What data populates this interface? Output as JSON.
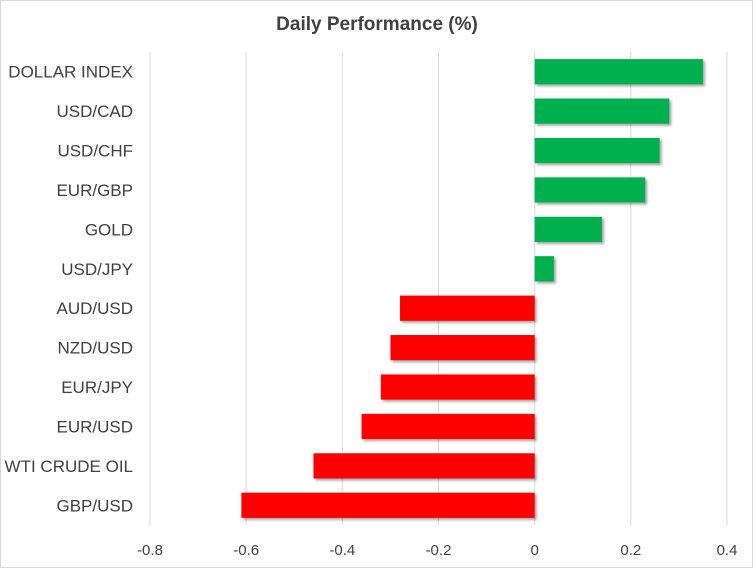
{
  "chart_data": {
    "type": "bar",
    "orientation": "horizontal",
    "title": "Daily Performance  (%)",
    "xlabel": "",
    "ylabel": "",
    "xlim": [
      -0.8,
      0.4
    ],
    "xticks": [
      -0.8,
      -0.6,
      -0.4,
      -0.2,
      0,
      0.2,
      0.4
    ],
    "xtick_labels": [
      "-0.8",
      "-0.6",
      "-0.4",
      "-0.2",
      "0",
      "0.2",
      "0.4"
    ],
    "grid": true,
    "categories": [
      "DOLLAR INDEX",
      "USD/CAD",
      "USD/CHF",
      "EUR/GBP",
      "GOLD",
      "USD/JPY",
      "AUD/USD",
      "NZD/USD",
      "EUR/JPY",
      "EUR/USD",
      "WTI CRUDE OIL",
      "GBP/USD"
    ],
    "values": [
      0.35,
      0.28,
      0.26,
      0.23,
      0.14,
      0.04,
      -0.28,
      -0.3,
      -0.32,
      -0.36,
      -0.46,
      -0.61
    ],
    "colors": {
      "positive": "#00b050",
      "negative": "#ff0000",
      "gridline": "#d9d9d9",
      "text": "#404040"
    }
  }
}
